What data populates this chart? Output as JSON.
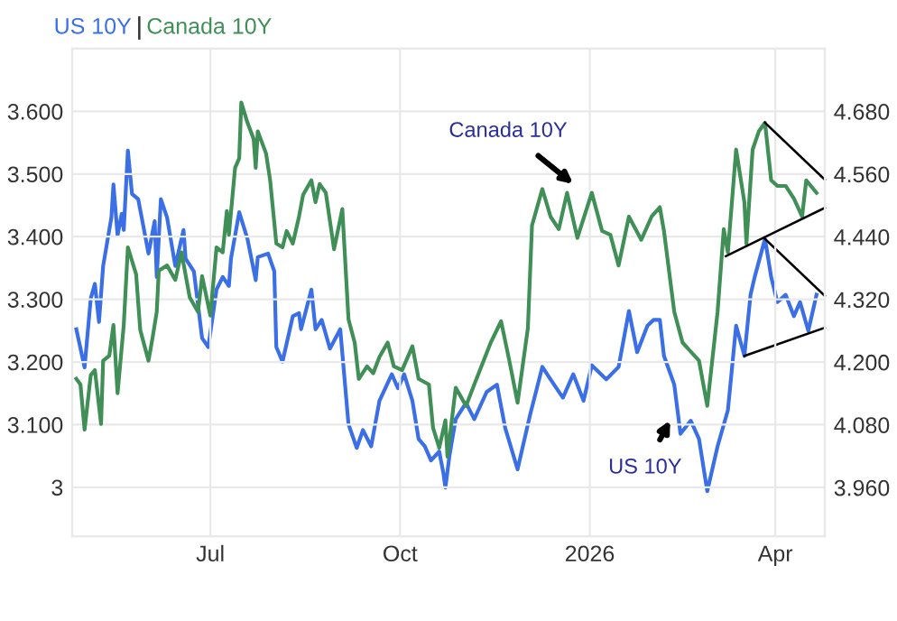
{
  "chart_data": {
    "type": "line",
    "legend": "top left",
    "grid": true,
    "xlim": [
      "2025-04-25",
      "2026-04-25"
    ],
    "xticks": [
      {
        "value": "2025-07-01",
        "label": "Jul"
      },
      {
        "value": "2025-10-01",
        "label": "Oct"
      },
      {
        "value": "2026-01-01",
        "label": "2026"
      },
      {
        "value": "2026-04-01",
        "label": "Apr"
      }
    ],
    "ylim": [
      2.922,
      3.7
    ],
    "yticks": [
      {
        "value": 3,
        "label": "3"
      },
      {
        "value": 3.1,
        "label": "3.100"
      },
      {
        "value": 3.2,
        "label": "3.200"
      },
      {
        "value": 3.3,
        "label": "3.300"
      },
      {
        "value": 3.4,
        "label": "3.400"
      },
      {
        "value": 3.5,
        "label": "3.500"
      },
      {
        "value": 3.6,
        "label": "3.600"
      }
    ],
    "y2lim": [
      3.867,
      4.8
    ],
    "y2ticks": [
      {
        "value": 3.96,
        "label": "3.960"
      },
      {
        "value": 4.08,
        "label": "4.080"
      },
      {
        "value": 4.2,
        "label": "4.200"
      },
      {
        "value": 4.32,
        "label": "4.320"
      },
      {
        "value": 4.44,
        "label": "4.440"
      },
      {
        "value": 4.56,
        "label": "4.560"
      },
      {
        "value": 4.68,
        "label": "4.680"
      }
    ],
    "annotations": [
      {
        "text": "Canada 10Y",
        "x": "2025-12-24",
        "y": 3.484
      },
      {
        "text": "US 10Y",
        "x": "2026-02-09",
        "y": 3.107
      }
    ],
    "series": [
      {
        "name": "US 10Y",
        "color": "#3b6fe6",
        "axis": "y2",
        "x": [
          "2025-04-27",
          "2025-05-01",
          "2025-05-04",
          "2025-05-06",
          "2025-05-08",
          "2025-05-10",
          "2025-05-14",
          "2025-05-15",
          "2025-05-17",
          "2025-05-19",
          "2025-05-20",
          "2025-05-22",
          "2025-05-24",
          "2025-05-27",
          "2025-05-30",
          "2025-06-01",
          "2025-06-04",
          "2025-06-05",
          "2025-06-07",
          "2025-06-10",
          "2025-06-14",
          "2025-06-18",
          "2025-06-19",
          "2025-06-23",
          "2025-06-27",
          "2025-06-30",
          "2025-07-04",
          "2025-07-07",
          "2025-07-10",
          "2025-07-11",
          "2025-07-15",
          "2025-07-19",
          "2025-07-23",
          "2025-07-24",
          "2025-07-29",
          "2025-08-01",
          "2025-08-02",
          "2025-08-05",
          "2025-08-10",
          "2025-08-13",
          "2025-08-14",
          "2025-08-19",
          "2025-08-21",
          "2025-08-24",
          "2025-08-28",
          "2025-09-02",
          "2025-09-06",
          "2025-09-10",
          "2025-09-13",
          "2025-09-17",
          "2025-09-21",
          "2025-09-27",
          "2025-09-30",
          "2025-10-03",
          "2025-10-07",
          "2025-10-10",
          "2025-10-13",
          "2025-10-16",
          "2025-10-20",
          "2025-10-22",
          "2025-10-23",
          "2025-10-25",
          "2025-10-28",
          "2025-11-02",
          "2025-11-06",
          "2025-11-12",
          "2025-11-17",
          "2025-11-21",
          "2025-11-27",
          "2025-12-03",
          "2025-12-09",
          "2025-12-13",
          "2025-12-19",
          "2025-12-24",
          "2025-12-29",
          "2026-01-02",
          "2026-01-09",
          "2026-01-15",
          "2026-01-20",
          "2026-01-24",
          "2026-01-29",
          "2026-02-01",
          "2026-02-04",
          "2026-02-06",
          "2026-02-11",
          "2026-02-14",
          "2026-02-19",
          "2026-02-23",
          "2026-02-27",
          "2026-03-04",
          "2026-03-09",
          "2026-03-13",
          "2026-03-17",
          "2026-03-20",
          "2026-03-22",
          "2026-03-27",
          "2026-03-30",
          "2026-04-02",
          "2026-04-06",
          "2026-04-10",
          "2026-04-13",
          "2026-04-17",
          "2026-04-21"
        ],
        "values": [
          4.263,
          4.19,
          4.322,
          4.35,
          4.277,
          4.384,
          4.477,
          4.54,
          4.443,
          4.484,
          4.453,
          4.605,
          4.522,
          4.512,
          4.45,
          4.408,
          4.47,
          4.363,
          4.512,
          4.477,
          4.384,
          4.453,
          4.398,
          4.374,
          4.246,
          4.229,
          4.339,
          4.363,
          4.346,
          4.398,
          4.487,
          4.436,
          4.357,
          4.401,
          4.408,
          4.374,
          4.229,
          4.201,
          4.288,
          4.294,
          4.263,
          4.339,
          4.263,
          4.281,
          4.226,
          4.263,
          4.081,
          4.036,
          4.07,
          4.039,
          4.126,
          4.177,
          4.15,
          4.177,
          4.126,
          4.053,
          4.039,
          4.012,
          4.029,
          3.988,
          3.96,
          4.022,
          4.091,
          4.122,
          4.091,
          4.143,
          4.157,
          4.074,
          3.995,
          4.098,
          4.191,
          4.167,
          4.132,
          4.177,
          4.126,
          4.194,
          4.167,
          4.191,
          4.298,
          4.219,
          4.27,
          4.281,
          4.281,
          4.212,
          4.157,
          4.063,
          4.088,
          4.053,
          3.953,
          4.039,
          4.108,
          4.27,
          4.212,
          4.329,
          4.363,
          4.436,
          4.363,
          4.315,
          4.329,
          4.288,
          4.315,
          4.26,
          4.329
        ]
      },
      {
        "name": "Canada 10Y",
        "color": "#3f8f57",
        "x": [
          "2025-04-27",
          "2025-04-29",
          "2025-05-01",
          "2025-05-04",
          "2025-05-06",
          "2025-05-09",
          "2025-05-10",
          "2025-05-13",
          "2025-05-15",
          "2025-05-17",
          "2025-05-20",
          "2025-05-22",
          "2025-05-26",
          "2025-05-28",
          "2025-06-01",
          "2025-06-03",
          "2025-06-05",
          "2025-06-06",
          "2025-06-10",
          "2025-06-14",
          "2025-06-17",
          "2025-06-21",
          "2025-06-25",
          "2025-06-27",
          "2025-07-01",
          "2025-07-04",
          "2025-07-07",
          "2025-07-09",
          "2025-07-10",
          "2025-07-13",
          "2025-07-15",
          "2025-07-16",
          "2025-07-19",
          "2025-07-22",
          "2025-07-23",
          "2025-07-24",
          "2025-07-28",
          "2025-07-30",
          "2025-08-02",
          "2025-08-05",
          "2025-08-07",
          "2025-08-10",
          "2025-08-13",
          "2025-08-15",
          "2025-08-19",
          "2025-08-21",
          "2025-08-23",
          "2025-08-26",
          "2025-08-30",
          "2025-09-03",
          "2025-09-06",
          "2025-09-09",
          "2025-09-11",
          "2025-09-15",
          "2025-09-18",
          "2025-09-21",
          "2025-09-25",
          "2025-09-28",
          "2025-10-02",
          "2025-10-07",
          "2025-10-10",
          "2025-10-15",
          "2025-10-17",
          "2025-10-20",
          "2025-10-23",
          "2025-10-24",
          "2025-10-28",
          "2025-11-02",
          "2025-11-06",
          "2025-11-14",
          "2025-11-19",
          "2025-11-23",
          "2025-11-27",
          "2025-12-02",
          "2025-12-04",
          "2025-12-09",
          "2025-12-13",
          "2025-12-17",
          "2025-12-21",
          "2025-12-26",
          "2026-01-02",
          "2026-01-07",
          "2026-01-11",
          "2026-01-15",
          "2026-01-20",
          "2026-01-26",
          "2026-01-31",
          "2026-02-04",
          "2026-02-06",
          "2026-02-11",
          "2026-02-15",
          "2026-02-23",
          "2026-02-27",
          "2026-03-04",
          "2026-03-07",
          "2026-03-09",
          "2026-03-13",
          "2026-03-17",
          "2026-03-18",
          "2026-03-21",
          "2026-03-24",
          "2026-03-27",
          "2026-03-30",
          "2026-04-02",
          "2026-04-06",
          "2026-04-10",
          "2026-04-14",
          "2026-04-16",
          "2026-04-21"
        ],
        "values": [
          3.173,
          3.164,
          3.092,
          3.179,
          3.187,
          3.101,
          3.202,
          3.21,
          3.259,
          3.15,
          3.259,
          3.383,
          3.34,
          3.251,
          3.202,
          3.239,
          3.28,
          3.346,
          3.354,
          3.331,
          3.375,
          3.303,
          3.28,
          3.337,
          3.274,
          3.383,
          3.375,
          3.441,
          3.403,
          3.51,
          3.525,
          3.614,
          3.582,
          3.556,
          3.51,
          3.568,
          3.533,
          3.49,
          3.389,
          3.383,
          3.409,
          3.389,
          3.432,
          3.467,
          3.49,
          3.455,
          3.484,
          3.47,
          3.38,
          3.444,
          3.268,
          3.231,
          3.173,
          3.193,
          3.182,
          3.208,
          3.231,
          3.193,
          3.187,
          3.225,
          3.173,
          3.164,
          3.095,
          3.063,
          3.107,
          3.049,
          3.159,
          3.13,
          3.164,
          3.231,
          3.265,
          3.202,
          3.135,
          3.254,
          3.418,
          3.476,
          3.432,
          3.412,
          3.47,
          3.398,
          3.47,
          3.409,
          3.403,
          3.354,
          3.432,
          3.395,
          3.432,
          3.447,
          3.409,
          3.28,
          3.231,
          3.202,
          3.13,
          3.28,
          3.412,
          3.375,
          3.539,
          3.455,
          3.389,
          3.539,
          3.568,
          3.582,
          3.49,
          3.481,
          3.481,
          3.461,
          3.432,
          3.49,
          3.47
        ]
      },
      {
        "color": "#000000",
        "x": [
          "2026-03-27",
          "2026-04-25",
          null,
          "2026-04-25",
          "2026-03-08"
        ],
        "values": [
          3.582,
          3.491,
          null,
          3.446,
          3.369
        ]
      },
      {
        "color": "#000000",
        "axis": "y2",
        "x": [
          "2026-03-27",
          "2026-04-25",
          null,
          "2026-04-25",
          "2026-03-17"
        ],
        "values": [
          4.436,
          4.327,
          null,
          4.266,
          4.212
        ]
      }
    ]
  }
}
